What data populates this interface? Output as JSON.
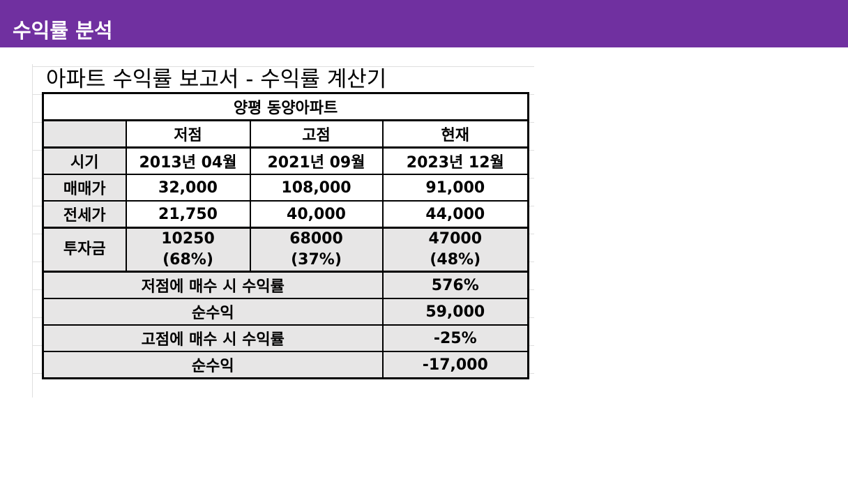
{
  "header": {
    "title": "수익률 분석",
    "color": "#7030a0"
  },
  "report": {
    "title": "아파트 수익률 보고서 - 수익률 계산기",
    "property": "양평 동양아파트",
    "columns": [
      "저점",
      "고점",
      "현재"
    ],
    "rows": [
      {
        "label": "시기",
        "values": [
          "2013년 04월",
          "2021년 09월",
          "2023년 12월"
        ]
      },
      {
        "label": "매매가",
        "values": [
          "32,000",
          "108,000",
          "91,000"
        ]
      },
      {
        "label": "전세가",
        "values": [
          "21,750",
          "40,000",
          "44,000"
        ]
      }
    ],
    "investment": {
      "label": "투자금",
      "amounts": [
        "10250",
        "68000",
        "47000"
      ],
      "ratios": [
        "(68%)",
        "(37%)",
        "(48%)"
      ]
    },
    "summary": [
      {
        "label": "저점에 매수 시 수익률",
        "value": "576%"
      },
      {
        "label": "순수익",
        "value": "59,000"
      },
      {
        "label": "고점에 매수 시 수익률",
        "value": "-25%"
      },
      {
        "label": "순수익",
        "value": "-17,000"
      }
    ],
    "colors": {
      "accent_blue": "#2e75b6",
      "cell_gray": "#e7e6e6"
    }
  }
}
